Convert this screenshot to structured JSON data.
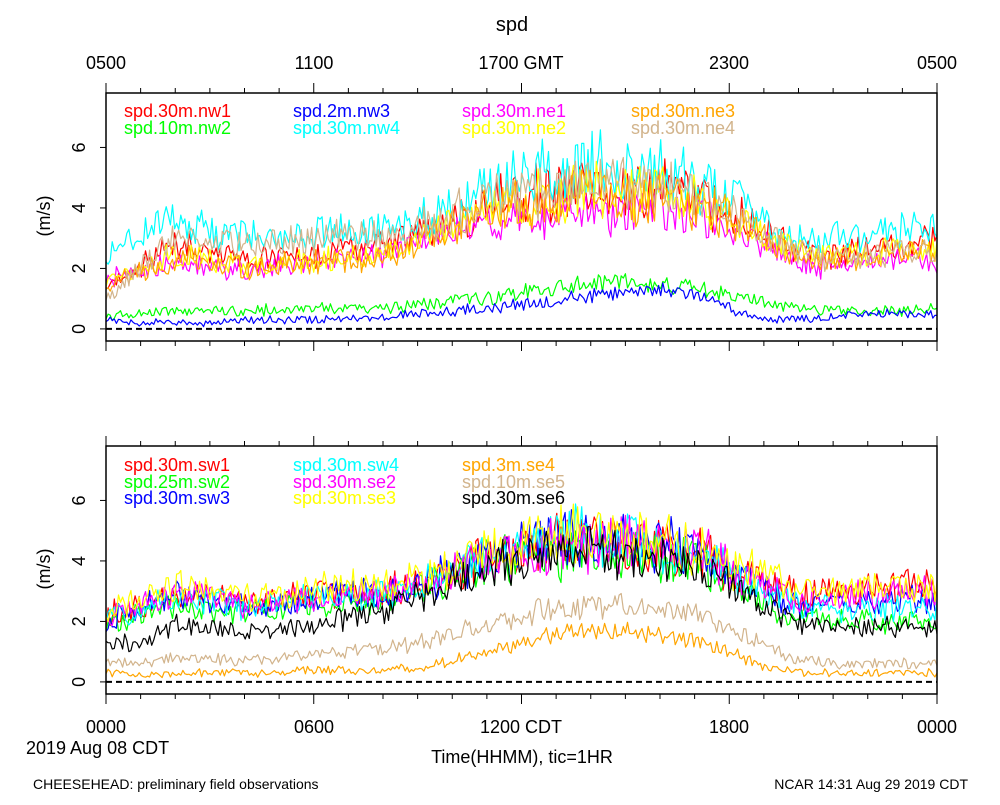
{
  "figure": {
    "title": "spd",
    "footer_left": "CHEESEHEAD: preliminary field observations",
    "footer_right": "NCAR 14:31 Aug 29 2019 CDT",
    "x_label": "Time(HHMM), tic=1HR",
    "date_label": "2019 Aug 08 CDT",
    "top_tick_labels": [
      "0500",
      "1100",
      "1700 GMT",
      "2300",
      "0500"
    ],
    "bottom_tick_labels": [
      "0000",
      "0600",
      "1200 CDT",
      "1800",
      "0000"
    ]
  },
  "chart_data": [
    {
      "type": "line",
      "panel": "top",
      "ylabel": "(m/s)",
      "xlim": [
        0,
        24
      ],
      "ylim": [
        -0.4,
        7.8
      ],
      "yticks": [
        0,
        2,
        4,
        6
      ],
      "xtick_hours": [
        0,
        6,
        12,
        18,
        24
      ],
      "zero_line": true,
      "series": [
        {
          "name": "spd.30m.nw1",
          "color": "#ff0000",
          "x": [
            0,
            1,
            2,
            3,
            4,
            5,
            6,
            7,
            8,
            9,
            10,
            11,
            12,
            13,
            14,
            15,
            16,
            17,
            18,
            19,
            20,
            21,
            22,
            23,
            24
          ],
          "y": [
            1.5,
            2.1,
            2.8,
            2.6,
            2.3,
            2.4,
            2.4,
            2.6,
            2.7,
            3.1,
            3.6,
            4.1,
            4.4,
            4.6,
            4.6,
            4.5,
            4.7,
            4.4,
            3.9,
            3.3,
            2.6,
            2.4,
            2.6,
            2.8,
            3.0
          ]
        },
        {
          "name": "spd.10m.nw2",
          "color": "#00ff00",
          "x": [
            0,
            2,
            4,
            6,
            8,
            9,
            10,
            11,
            12,
            13,
            14,
            15,
            16,
            17,
            18,
            19,
            20,
            21,
            22,
            23,
            24
          ],
          "y": [
            0.4,
            0.6,
            0.6,
            0.7,
            0.7,
            0.8,
            0.9,
            1.0,
            1.2,
            1.4,
            1.5,
            1.6,
            1.5,
            1.4,
            1.1,
            0.9,
            0.7,
            0.6,
            0.6,
            0.6,
            0.7
          ]
        },
        {
          "name": "spd.2m.nw3",
          "color": "#0000ff",
          "x": [
            0,
            1,
            2,
            3,
            4,
            5,
            6,
            7,
            8,
            9,
            10,
            11,
            12,
            13,
            14,
            15,
            16,
            17,
            18,
            19,
            20,
            21,
            22,
            23,
            24
          ],
          "y": [
            0.3,
            0.2,
            0.2,
            0.2,
            0.3,
            0.3,
            0.3,
            0.3,
            0.4,
            0.5,
            0.6,
            0.7,
            0.8,
            0.9,
            1.1,
            1.2,
            1.3,
            1.1,
            0.7,
            0.3,
            0.3,
            0.4,
            0.5,
            0.5,
            0.5
          ]
        },
        {
          "name": "spd.30m.nw4",
          "color": "#00ffff",
          "x": [
            0,
            1,
            2,
            3,
            4,
            5,
            6,
            7,
            8,
            9,
            10,
            11,
            12,
            13,
            14,
            15,
            16,
            17,
            18,
            19,
            20,
            21,
            22,
            23,
            24
          ],
          "y": [
            2.4,
            3.1,
            3.6,
            3.3,
            3.1,
            3.0,
            3.2,
            3.3,
            3.2,
            3.6,
            4.1,
            4.6,
            5.0,
            5.2,
            5.4,
            5.4,
            5.2,
            4.9,
            4.4,
            3.6,
            2.9,
            3.0,
            3.2,
            3.3,
            3.4
          ]
        },
        {
          "name": "spd.30m.ne1",
          "color": "#ff00ff",
          "x": [
            0,
            1,
            2,
            3,
            4,
            5,
            6,
            7,
            8,
            9,
            10,
            11,
            12,
            13,
            14,
            15,
            16,
            17,
            18,
            19,
            20,
            21,
            22,
            23,
            24
          ],
          "y": [
            1.6,
            1.9,
            2.2,
            2.0,
            1.9,
            2.1,
            2.2,
            2.3,
            2.4,
            2.8,
            3.2,
            3.5,
            3.6,
            3.7,
            3.9,
            3.9,
            3.9,
            3.7,
            3.3,
            2.8,
            2.1,
            2.0,
            2.2,
            2.3,
            2.2
          ]
        },
        {
          "name": "spd.30m.ne2",
          "color": "#ffff00",
          "x": [
            0,
            1,
            2,
            3,
            4,
            5,
            6,
            7,
            8,
            9,
            10,
            11,
            12,
            13,
            14,
            15,
            16,
            17,
            18,
            19,
            20,
            21,
            22,
            23,
            24
          ],
          "y": [
            1.5,
            2.0,
            2.5,
            2.3,
            2.1,
            2.2,
            2.3,
            2.4,
            2.5,
            2.9,
            3.4,
            3.9,
            4.3,
            4.5,
            4.6,
            4.6,
            4.5,
            4.3,
            3.8,
            3.2,
            2.5,
            2.4,
            2.5,
            2.6,
            2.6
          ]
        },
        {
          "name": "spd.30m.ne3",
          "color": "#ffa500",
          "x": [
            0,
            1,
            2,
            3,
            4,
            5,
            6,
            7,
            8,
            9,
            10,
            11,
            12,
            13,
            14,
            15,
            16,
            17,
            18,
            19,
            20,
            21,
            22,
            23,
            24
          ],
          "y": [
            1.4,
            1.9,
            2.4,
            2.2,
            2.0,
            2.1,
            2.2,
            2.3,
            2.4,
            2.8,
            3.3,
            3.8,
            4.1,
            4.3,
            4.4,
            4.4,
            4.3,
            4.1,
            3.6,
            3.0,
            2.4,
            2.3,
            2.4,
            2.5,
            2.5
          ]
        },
        {
          "name": "spd.30m.ne4",
          "color": "#d2b48c",
          "x": [
            0,
            1,
            2,
            3,
            4,
            5,
            6,
            7,
            8,
            9,
            10,
            11,
            12,
            13,
            14,
            15,
            16,
            17,
            18,
            19,
            20,
            21,
            22,
            23,
            24
          ],
          "y": [
            0.9,
            2.1,
            3.0,
            3.0,
            2.8,
            2.9,
            3.0,
            3.1,
            3.1,
            3.4,
            3.8,
            4.2,
            4.5,
            4.7,
            4.8,
            4.8,
            4.7,
            4.5,
            3.9,
            3.2,
            2.5,
            2.3,
            2.4,
            2.6,
            2.6
          ]
        }
      ]
    },
    {
      "type": "line",
      "panel": "bottom",
      "ylabel": "(m/s)",
      "xlim": [
        0,
        24
      ],
      "ylim": [
        -0.4,
        7.8
      ],
      "yticks": [
        0,
        2,
        4,
        6
      ],
      "xtick_hours": [
        0,
        6,
        12,
        18,
        24
      ],
      "zero_line": true,
      "series": [
        {
          "name": "spd.30m.sw1",
          "color": "#ff0000",
          "x": [
            0,
            1,
            2,
            3,
            4,
            5,
            6,
            7,
            8,
            9,
            10,
            11,
            12,
            13,
            14,
            15,
            16,
            17,
            18,
            19,
            20,
            21,
            22,
            23,
            24
          ],
          "y": [
            2.2,
            2.5,
            3.0,
            2.9,
            2.6,
            2.8,
            2.9,
            3.0,
            3.0,
            3.2,
            3.6,
            4.1,
            4.4,
            4.6,
            4.7,
            4.6,
            4.5,
            4.3,
            3.8,
            3.4,
            2.9,
            3.0,
            3.1,
            3.2,
            3.2
          ]
        },
        {
          "name": "spd.25m.sw2",
          "color": "#00ff00",
          "x": [
            0,
            1,
            2,
            3,
            4,
            5,
            6,
            7,
            8,
            9,
            10,
            11,
            12,
            13,
            14,
            15,
            16,
            17,
            18,
            19,
            20,
            21,
            22,
            23,
            24
          ],
          "y": [
            2.0,
            2.2,
            2.6,
            2.4,
            2.3,
            2.4,
            2.5,
            2.6,
            2.7,
            3.0,
            3.4,
            3.9,
            4.2,
            4.3,
            4.3,
            4.3,
            4.2,
            4.0,
            3.4,
            2.6,
            2.1,
            2.1,
            2.0,
            2.0,
            2.0
          ]
        },
        {
          "name": "spd.30m.sw3",
          "color": "#0000ff",
          "x": [
            0,
            1,
            2,
            3,
            4,
            5,
            6,
            7,
            8,
            9,
            10,
            11,
            12,
            13,
            14,
            15,
            16,
            17,
            18,
            19,
            20,
            21,
            22,
            23,
            24
          ],
          "y": [
            2.0,
            2.4,
            2.9,
            2.7,
            2.5,
            2.6,
            2.8,
            2.9,
            2.9,
            3.2,
            3.6,
            4.1,
            4.4,
            4.6,
            4.7,
            4.6,
            4.5,
            4.3,
            3.7,
            3.0,
            2.5,
            2.5,
            2.6,
            2.7,
            2.7
          ]
        },
        {
          "name": "spd.30m.sw4",
          "color": "#00ffff",
          "x": [
            0,
            1,
            2,
            3,
            4,
            5,
            6,
            7,
            8,
            9,
            10,
            11,
            12,
            13,
            14,
            15,
            16,
            17,
            18,
            19,
            20,
            21,
            22,
            23,
            24
          ],
          "y": [
            2.1,
            2.4,
            2.8,
            2.7,
            2.5,
            2.6,
            2.8,
            2.8,
            2.9,
            3.2,
            3.6,
            4.1,
            4.5,
            4.7,
            4.8,
            4.7,
            4.6,
            4.3,
            3.7,
            3.0,
            2.5,
            2.4,
            2.4,
            2.4,
            2.4
          ]
        },
        {
          "name": "spd.30m.se2",
          "color": "#ff00ff",
          "x": [
            0,
            1,
            2,
            3,
            4,
            5,
            6,
            7,
            8,
            9,
            10,
            11,
            12,
            13,
            14,
            15,
            16,
            17,
            18,
            19,
            20,
            21,
            22,
            23,
            24
          ],
          "y": [
            2.1,
            2.5,
            2.9,
            2.8,
            2.6,
            2.7,
            2.8,
            2.9,
            2.9,
            3.2,
            3.6,
            4.0,
            4.3,
            4.5,
            4.6,
            4.6,
            4.5,
            4.3,
            3.8,
            3.2,
            2.7,
            2.8,
            2.9,
            3.0,
            3.0
          ]
        },
        {
          "name": "spd.30m.se3",
          "color": "#ffff00",
          "x": [
            0,
            1,
            2,
            3,
            4,
            5,
            6,
            7,
            8,
            9,
            10,
            11,
            12,
            13,
            14,
            15,
            16,
            17,
            18,
            19,
            20,
            21,
            22,
            23,
            24
          ],
          "y": [
            2.3,
            2.7,
            3.2,
            3.1,
            2.8,
            2.9,
            3.1,
            3.1,
            3.2,
            3.4,
            3.8,
            4.3,
            4.6,
            4.8,
            4.9,
            4.8,
            4.7,
            4.4,
            3.9,
            3.5,
            3.0,
            3.1,
            3.2,
            3.2,
            3.2
          ]
        },
        {
          "name": "spd.3m.se4",
          "color": "#ffa500",
          "x": [
            0,
            1,
            2,
            3,
            4,
            5,
            6,
            7,
            8,
            9,
            10,
            11,
            12,
            13,
            14,
            15,
            16,
            17,
            18,
            19,
            20,
            21,
            22,
            23,
            24
          ],
          "y": [
            0.3,
            0.2,
            0.3,
            0.3,
            0.3,
            0.3,
            0.4,
            0.4,
            0.4,
            0.5,
            0.7,
            1.0,
            1.3,
            1.6,
            1.7,
            1.7,
            1.6,
            1.4,
            1.0,
            0.5,
            0.3,
            0.3,
            0.3,
            0.3,
            0.3
          ]
        },
        {
          "name": "spd.10m.se5",
          "color": "#d2b48c",
          "x": [
            0,
            1,
            2,
            3,
            4,
            5,
            6,
            7,
            8,
            9,
            10,
            11,
            12,
            13,
            14,
            15,
            16,
            17,
            18,
            19,
            20,
            21,
            22,
            23,
            24
          ],
          "y": [
            0.7,
            0.6,
            0.8,
            0.8,
            0.7,
            0.8,
            0.9,
            1.0,
            1.1,
            1.3,
            1.6,
            1.9,
            2.2,
            2.4,
            2.5,
            2.5,
            2.4,
            2.2,
            1.8,
            1.2,
            0.7,
            0.6,
            0.6,
            0.6,
            0.6
          ]
        },
        {
          "name": "spd.30m.se6",
          "color": "#000000",
          "x": [
            0,
            1,
            2,
            3,
            4,
            5,
            6,
            7,
            8,
            9,
            10,
            11,
            12,
            13,
            14,
            15,
            16,
            17,
            18,
            19,
            20,
            21,
            22,
            23,
            24
          ],
          "y": [
            1.4,
            1.2,
            1.9,
            1.8,
            1.6,
            1.7,
            1.9,
            2.1,
            2.3,
            2.8,
            3.3,
            3.8,
            4.0,
            4.2,
            4.3,
            4.2,
            4.1,
            3.9,
            3.4,
            2.5,
            1.9,
            1.8,
            1.8,
            1.8,
            1.8
          ]
        }
      ]
    }
  ]
}
